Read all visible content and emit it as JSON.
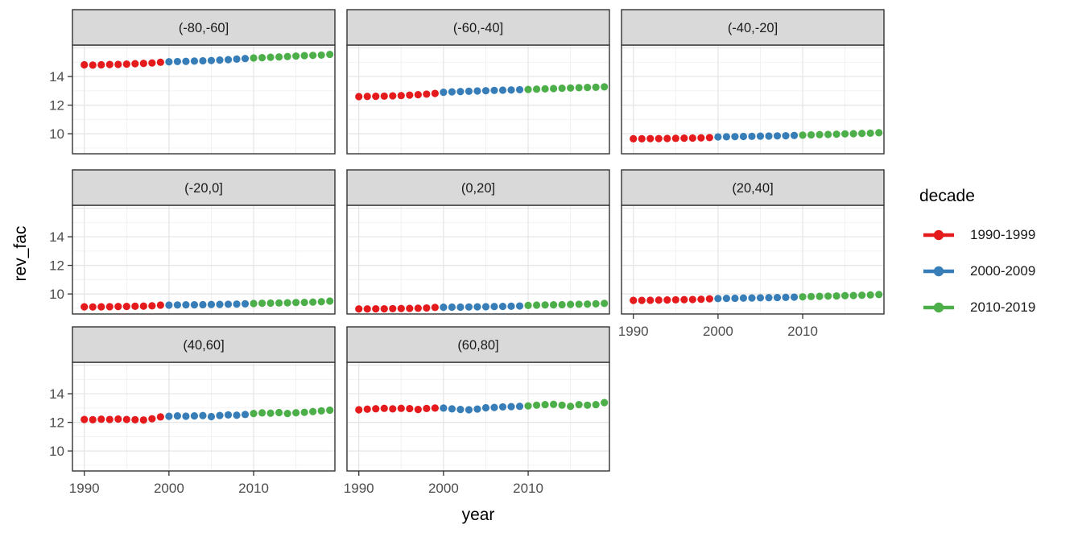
{
  "chart_data": {
    "type": "scatter",
    "title": "",
    "xlabel": "year",
    "ylabel": "rev_fac",
    "grid": true,
    "legend_position": "right",
    "x_range": [
      1988.6,
      2019.6
    ],
    "y_range": [
      8.6,
      16.2
    ],
    "x_ticks": [
      1990,
      2000,
      2010
    ],
    "y_ticks": [
      10,
      12,
      14
    ],
    "x_grid_minor": [
      1995,
      2005,
      2015
    ],
    "y_grid_major": [
      10,
      12,
      14,
      16
    ],
    "y_grid_minor": [
      9,
      11,
      13,
      15
    ],
    "years": [
      1990,
      1991,
      1992,
      1993,
      1994,
      1995,
      1996,
      1997,
      1998,
      1999,
      2000,
      2001,
      2002,
      2003,
      2004,
      2005,
      2006,
      2007,
      2008,
      2009,
      2010,
      2011,
      2012,
      2013,
      2014,
      2015,
      2016,
      2017,
      2018,
      2019
    ],
    "legend": {
      "title": "decade",
      "entries": [
        {
          "label": "1990-1999",
          "color": "#E41A1C"
        },
        {
          "label": "2000-2009",
          "color": "#377EB8"
        },
        {
          "label": "2010-2019",
          "color": "#4DAF4A"
        }
      ]
    },
    "facets": [
      {
        "label": "(-80,-60]",
        "values": [
          14.82,
          14.8,
          14.82,
          14.84,
          14.85,
          14.87,
          14.9,
          14.92,
          14.95,
          15.0,
          15.03,
          15.05,
          15.06,
          15.08,
          15.1,
          15.12,
          15.15,
          15.18,
          15.22,
          15.26,
          15.3,
          15.32,
          15.35,
          15.37,
          15.4,
          15.43,
          15.46,
          15.48,
          15.5,
          15.55
        ]
      },
      {
        "label": "(-60,-40]",
        "values": [
          12.6,
          12.61,
          12.62,
          12.63,
          12.65,
          12.67,
          12.7,
          12.73,
          12.77,
          12.82,
          12.9,
          12.93,
          12.95,
          12.97,
          12.99,
          13.01,
          13.03,
          13.05,
          13.06,
          13.08,
          13.1,
          13.12,
          13.14,
          13.16,
          13.18,
          13.2,
          13.22,
          13.24,
          13.25,
          13.28
        ]
      },
      {
        "label": "(-40,-20]",
        "values": [
          9.65,
          9.65,
          9.66,
          9.66,
          9.67,
          9.68,
          9.69,
          9.7,
          9.71,
          9.73,
          9.78,
          9.79,
          9.8,
          9.81,
          9.82,
          9.83,
          9.84,
          9.85,
          9.86,
          9.88,
          9.9,
          9.92,
          9.94,
          9.95,
          9.97,
          9.99,
          10.0,
          10.02,
          10.04,
          10.07
        ]
      },
      {
        "label": "(-20,0]",
        "values": [
          9.1,
          9.09,
          9.1,
          9.11,
          9.12,
          9.13,
          9.14,
          9.15,
          9.17,
          9.22,
          9.22,
          9.23,
          9.24,
          9.24,
          9.25,
          9.26,
          9.27,
          9.28,
          9.29,
          9.31,
          9.33,
          9.35,
          9.36,
          9.37,
          9.38,
          9.4,
          9.41,
          9.43,
          9.46,
          9.5
        ]
      },
      {
        "label": "(0,20]",
        "values": [
          8.95,
          8.95,
          8.96,
          8.96,
          8.97,
          8.98,
          8.99,
          9.0,
          9.02,
          9.06,
          9.07,
          9.08,
          9.08,
          9.09,
          9.1,
          9.11,
          9.12,
          9.13,
          9.14,
          9.16,
          9.2,
          9.22,
          9.23,
          9.24,
          9.25,
          9.27,
          9.28,
          9.29,
          9.31,
          9.34
        ]
      },
      {
        "label": "(20,40]",
        "values": [
          9.55,
          9.55,
          9.56,
          9.57,
          9.58,
          9.59,
          9.6,
          9.61,
          9.63,
          9.66,
          9.68,
          9.69,
          9.7,
          9.71,
          9.72,
          9.73,
          9.74,
          9.75,
          9.76,
          9.78,
          9.8,
          9.82,
          9.83,
          9.85,
          9.86,
          9.88,
          9.89,
          9.91,
          9.93,
          9.96
        ]
      },
      {
        "label": "(40,60]",
        "values": [
          12.2,
          12.18,
          12.22,
          12.2,
          12.23,
          12.2,
          12.18,
          12.16,
          12.25,
          12.38,
          12.42,
          12.45,
          12.43,
          12.45,
          12.47,
          12.4,
          12.48,
          12.52,
          12.5,
          12.55,
          12.62,
          12.66,
          12.64,
          12.68,
          12.62,
          12.67,
          12.7,
          12.75,
          12.8,
          12.85
        ]
      },
      {
        "label": "(60,80]",
        "values": [
          12.88,
          12.92,
          12.95,
          12.98,
          12.94,
          12.98,
          12.96,
          12.9,
          12.97,
          13.0,
          13.0,
          12.94,
          12.9,
          12.88,
          12.93,
          13.02,
          13.04,
          13.08,
          13.1,
          13.12,
          13.15,
          13.2,
          13.24,
          13.26,
          13.2,
          13.12,
          13.24,
          13.2,
          13.24,
          13.38
        ]
      }
    ],
    "colors": {
      "panel_background": "#FFFFFF",
      "strip_fill": "#D9D9D9",
      "border": "#333333",
      "grid_major": "#E4E4E4",
      "grid_minor": "#F0F0F0",
      "axis_text": "#4D4D4D",
      "strip_text": "#1A1A1A",
      "tick_mark": "#333333"
    }
  }
}
